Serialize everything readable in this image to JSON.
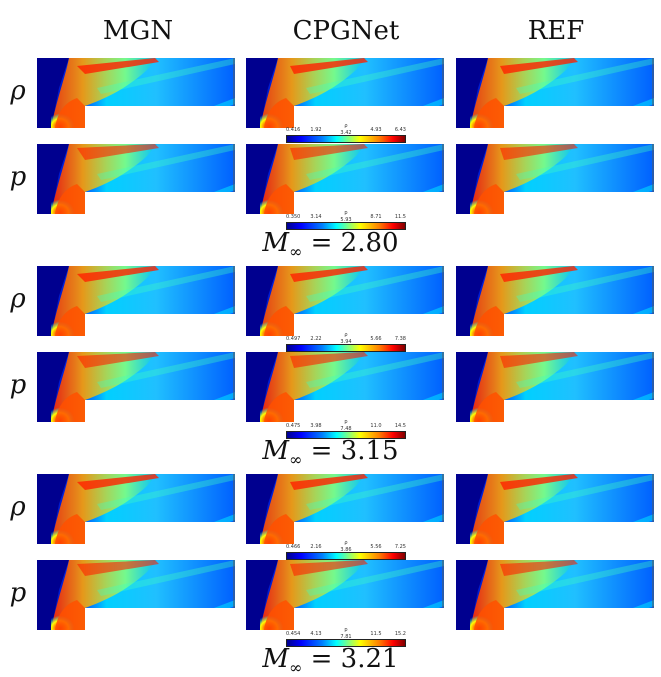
{
  "columns": [
    "MGN",
    "CPGNet",
    "REF"
  ],
  "row_symbols": {
    "density": "ρ",
    "pressure": "p"
  },
  "groups": [
    {
      "mach_symbol": "M",
      "mach_subscript": "∞",
      "mach_value": "= 2.80",
      "rho_colorbar": {
        "label": "ρ",
        "ticks": [
          "0.416",
          "1.92",
          "3.42",
          "4.93",
          "6.43"
        ]
      },
      "p_colorbar": {
        "label": "p",
        "ticks": [
          "0.350",
          "3.14",
          "5.93",
          "8.71",
          "11.5"
        ]
      }
    },
    {
      "mach_symbol": "M",
      "mach_subscript": "∞",
      "mach_value": "= 3.15",
      "rho_colorbar": {
        "label": "ρ",
        "ticks": [
          "0.497",
          "2.22",
          "3.94",
          "5.66",
          "7.38"
        ]
      },
      "p_colorbar": {
        "label": "p",
        "ticks": [
          "0.475",
          "3.98",
          "7.48",
          "11.0",
          "14.5"
        ]
      }
    },
    {
      "mach_symbol": "M",
      "mach_subscript": "∞",
      "mach_value": "= 3.21",
      "rho_colorbar": {
        "label": "ρ",
        "ticks": [
          "0.466",
          "2.16",
          "3.86",
          "5.56",
          "7.25"
        ]
      },
      "p_colorbar": {
        "label": "p",
        "ticks": [
          "0.454",
          "4.13",
          "7.81",
          "11.5",
          "15.2"
        ]
      }
    }
  ],
  "colormap": [
    "#00008f",
    "#0000ff",
    "#0080ff",
    "#00ffff",
    "#80ff80",
    "#ffff00",
    "#ff8000",
    "#ff0000",
    "#800000"
  ]
}
